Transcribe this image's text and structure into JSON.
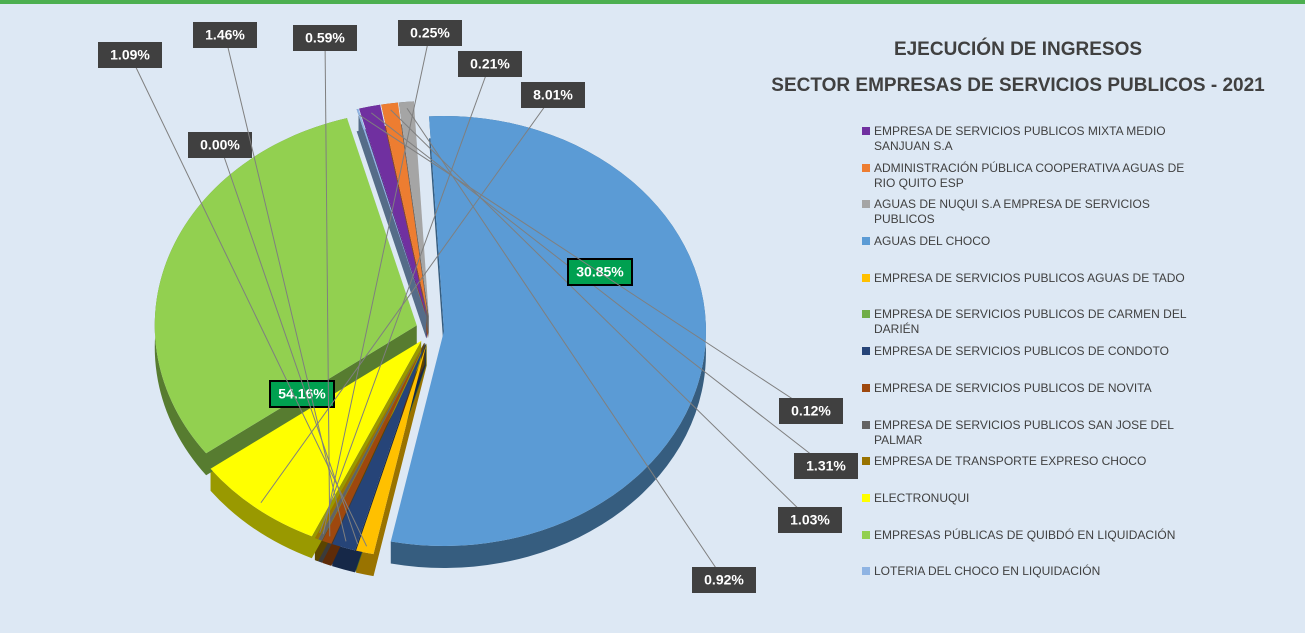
{
  "chart_data": {
    "type": "pie",
    "title": "EJECUCIÓN DE INGRESOS",
    "subtitle": "SECTOR EMPRESAS DE SERVICIOS PUBLICOS - 2021",
    "categories": [
      "EMPRESA DE SERVICIOS PUBLICOS MIXTA MEDIO SANJUAN S.A",
      "ADMINISTRACIÓN PÚBLICA COOPERATIVA AGUAS DE RIO QUITO ESP",
      "AGUAS DE NUQUI S.A EMPRESA DE SERVICIOS PUBLICOS",
      "AGUAS DEL CHOCO",
      "EMPRESA DE SERVICIOS PUBLICOS AGUAS DE TADO",
      "EMPRESA DE SERVICIOS PUBLICOS DE CARMEN DEL DARIÉN",
      "EMPRESA DE SERVICIOS PUBLICOS DE CONDOTO",
      "EMPRESA DE SERVICIOS PUBLICOS DE NOVITA",
      "EMPRESA DE SERVICIOS PUBLICOS SAN JOSE DEL PALMAR",
      "EMPRESA DE TRANSPORTE EXPRESO CHOCO",
      "ELECTRONUQUI",
      "EMPRESAS PÚBLICAS DE QUIBDÓ EN LIQUIDACIÓN",
      "LOTERIA DEL CHOCO EN LIQUIDACIÓN"
    ],
    "values": [
      1.31,
      1.03,
      0.92,
      54.16,
      1.09,
      0.0,
      1.46,
      0.59,
      0.25,
      0.21,
      8.01,
      30.85,
      0.12
    ],
    "value_labels": [
      "1.31%",
      "1.03%",
      "0.92%",
      "54.16%",
      "1.09%",
      "0.00%",
      "1.46%",
      "0.59%",
      "0.25%",
      "0.21%",
      "8.01%",
      "30.85%",
      "0.12%"
    ],
    "colors": [
      "#7030a0",
      "#ed7d31",
      "#a5a5a5",
      "#5b9bd5",
      "#ffc000",
      "#70ad47",
      "#264478",
      "#9e480e",
      "#636363",
      "#997300",
      "#ffff00",
      "#92d050",
      "#8fb4e3"
    ],
    "legend": "right"
  }
}
